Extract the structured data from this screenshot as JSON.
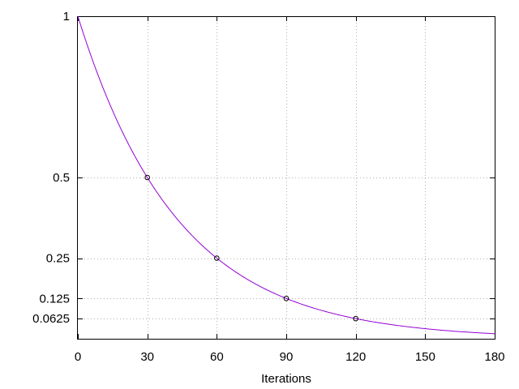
{
  "chart_data": {
    "type": "line",
    "title": "",
    "xlabel": "Iterations",
    "ylabel": "",
    "xlim": [
      0,
      180
    ],
    "ylim": [
      0,
      1
    ],
    "x_ticks": [
      0,
      30,
      60,
      90,
      120,
      150,
      180
    ],
    "x_tick_labels": [
      "0",
      "30",
      "60",
      "90",
      "120",
      "150",
      "180"
    ],
    "y_ticks": [
      1,
      0.5,
      0.25,
      0.125,
      0.0625
    ],
    "y_tick_labels": [
      "1",
      "0.5",
      "0.25",
      "0.125",
      "0.0625"
    ],
    "grid": true,
    "grid_style": "dotted",
    "legend": "none",
    "series": [
      {
        "style": "line",
        "function": "y = 2^(-x/30)",
        "x_range": [
          0,
          180
        ],
        "color": "#9400d3"
      },
      {
        "style": "points",
        "marker": "open-circle",
        "x": [
          30,
          60,
          90,
          120
        ],
        "y": [
          0.5,
          0.25,
          0.125,
          0.0625
        ],
        "color": "#000000"
      }
    ]
  }
}
